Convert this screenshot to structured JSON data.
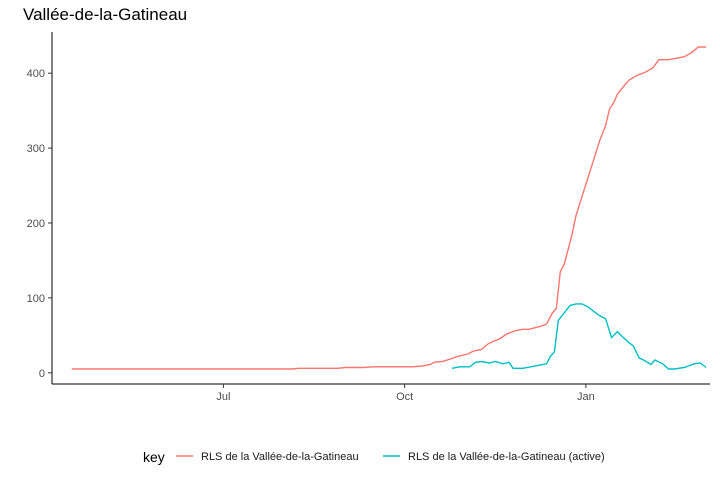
{
  "chart_data": {
    "type": "line",
    "title": "Vallée-de-la-Gatineau",
    "xlabel": "",
    "ylabel": "",
    "x_axis": {
      "type": "date",
      "range": [
        "2020-04-05",
        "2021-03-05"
      ],
      "ticks": [
        {
          "date": "2020-07-01",
          "label": "Jul"
        },
        {
          "date": "2020-10-01",
          "label": "Oct"
        },
        {
          "date": "2021-01-01",
          "label": "Jan"
        }
      ]
    },
    "y_axis": {
      "range": [
        -15,
        455
      ],
      "ticks": [
        0,
        100,
        200,
        300,
        400
      ]
    },
    "grid": false,
    "legend": {
      "position": "bottom",
      "title": "key"
    },
    "series": [
      {
        "name": "RLS de la Vallée-de-la-Gatineau",
        "color": "#F8766D",
        "points": [
          [
            "2020-04-15",
            5
          ],
          [
            "2020-08-05",
            5
          ],
          [
            "2020-08-08",
            6
          ],
          [
            "2020-08-20",
            6
          ],
          [
            "2020-08-28",
            6
          ],
          [
            "2020-09-01",
            7
          ],
          [
            "2020-09-10",
            7
          ],
          [
            "2020-09-15",
            8
          ],
          [
            "2020-09-30",
            8
          ],
          [
            "2020-10-05",
            8
          ],
          [
            "2020-10-10",
            9
          ],
          [
            "2020-10-14",
            11
          ],
          [
            "2020-10-16",
            14
          ],
          [
            "2020-10-20",
            15
          ],
          [
            "2020-10-25",
            19
          ],
          [
            "2020-10-28",
            22
          ],
          [
            "2020-11-02",
            25
          ],
          [
            "2020-11-05",
            29
          ],
          [
            "2020-11-09",
            31
          ],
          [
            "2020-11-12",
            38
          ],
          [
            "2020-11-15",
            42
          ],
          [
            "2020-11-18",
            45
          ],
          [
            "2020-11-22",
            52
          ],
          [
            "2020-11-26",
            56
          ],
          [
            "2020-11-30",
            58
          ],
          [
            "2020-12-03",
            58
          ],
          [
            "2020-12-06",
            60
          ],
          [
            "2020-12-09",
            62
          ],
          [
            "2020-12-12",
            65
          ],
          [
            "2020-12-15",
            80
          ],
          [
            "2020-12-17",
            86
          ],
          [
            "2020-12-19",
            135
          ],
          [
            "2020-12-21",
            145
          ],
          [
            "2020-12-23",
            165
          ],
          [
            "2020-12-25",
            185
          ],
          [
            "2020-12-27",
            210
          ],
          [
            "2020-12-30",
            235
          ],
          [
            "2021-01-02",
            260
          ],
          [
            "2021-01-05",
            285
          ],
          [
            "2021-01-08",
            310
          ],
          [
            "2021-01-11",
            330
          ],
          [
            "2021-01-13",
            352
          ],
          [
            "2021-01-15",
            360
          ],
          [
            "2021-01-17",
            372
          ],
          [
            "2021-01-20",
            382
          ],
          [
            "2021-01-23",
            391
          ],
          [
            "2021-01-27",
            397
          ],
          [
            "2021-01-31",
            401
          ],
          [
            "2021-02-04",
            407
          ],
          [
            "2021-02-07",
            418
          ],
          [
            "2021-02-12",
            418
          ],
          [
            "2021-02-16",
            420
          ],
          [
            "2021-02-20",
            422
          ],
          [
            "2021-02-24",
            428
          ],
          [
            "2021-02-27",
            435
          ],
          [
            "2021-03-03",
            435
          ]
        ]
      },
      {
        "name": "RLS de la Vallée-de-la-Gatineau (active)",
        "color": "#00BFC4",
        "points": [
          [
            "2020-10-25",
            6
          ],
          [
            "2020-10-29",
            8
          ],
          [
            "2020-11-03",
            8
          ],
          [
            "2020-11-06",
            14
          ],
          [
            "2020-11-09",
            15
          ],
          [
            "2020-11-13",
            13
          ],
          [
            "2020-11-16",
            15
          ],
          [
            "2020-11-20",
            12
          ],
          [
            "2020-11-23",
            14
          ],
          [
            "2020-11-25",
            6
          ],
          [
            "2020-11-30",
            6
          ],
          [
            "2020-12-04",
            8
          ],
          [
            "2020-12-08",
            10
          ],
          [
            "2020-12-12",
            12
          ],
          [
            "2020-12-14",
            22
          ],
          [
            "2020-12-16",
            28
          ],
          [
            "2020-12-18",
            70
          ],
          [
            "2020-12-21",
            80
          ],
          [
            "2020-12-24",
            90
          ],
          [
            "2020-12-27",
            92
          ],
          [
            "2020-12-30",
            92
          ],
          [
            "2021-01-02",
            88
          ],
          [
            "2021-01-05",
            82
          ],
          [
            "2021-01-08",
            76
          ],
          [
            "2021-01-11",
            72
          ],
          [
            "2021-01-14",
            47
          ],
          [
            "2021-01-17",
            55
          ],
          [
            "2021-01-20",
            47
          ],
          [
            "2021-01-23",
            40
          ],
          [
            "2021-01-25",
            36
          ],
          [
            "2021-01-28",
            20
          ],
          [
            "2021-01-31",
            16
          ],
          [
            "2021-02-03",
            11
          ],
          [
            "2021-02-05",
            17
          ],
          [
            "2021-02-09",
            12
          ],
          [
            "2021-02-12",
            5
          ],
          [
            "2021-02-15",
            5
          ],
          [
            "2021-02-20",
            7
          ],
          [
            "2021-02-25",
            12
          ],
          [
            "2021-02-28",
            13
          ],
          [
            "2021-03-03",
            7
          ]
        ]
      }
    ]
  }
}
